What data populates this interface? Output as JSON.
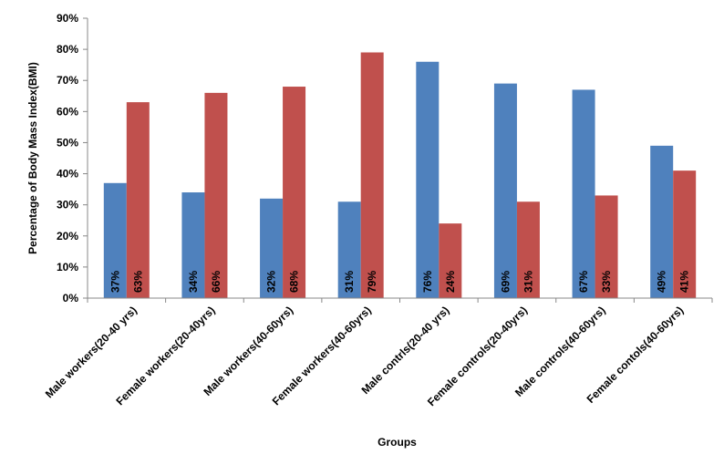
{
  "chart_data": {
    "type": "bar",
    "title": "",
    "xlabel": "Groups",
    "ylabel": "Percentage of Body Mass Index(BMI)",
    "ylim": [
      0,
      90
    ],
    "yticks": [
      "0%",
      "10%",
      "20%",
      "30%",
      "40%",
      "50%",
      "60%",
      "70%",
      "80%",
      "90%"
    ],
    "grid": false,
    "legend": "none",
    "categories": [
      "Male workers(20-40 yrs)",
      "Female workers(20-40yrs)",
      "Male workers(40-60yrs)",
      "Female workers(40-60yrs)",
      "Male contrls(20-40 yrs)",
      "Female controls(20-40yrs)",
      "Male controls(40-60yrs)",
      "Female contols(40-60yrs)"
    ],
    "series": [
      {
        "color": "#4F81BD",
        "values": [
          37,
          34,
          32,
          31,
          76,
          69,
          67,
          49
        ],
        "labels": [
          "37%",
          "34%",
          "32%",
          "31%",
          "76%",
          "69%",
          "67%",
          "49%"
        ]
      },
      {
        "color": "#C0504D",
        "values": [
          63,
          66,
          68,
          79,
          24,
          31,
          33,
          41
        ],
        "labels": [
          "63%",
          "66%",
          "68%",
          "79%",
          "24%",
          "31%",
          "33%",
          "41%"
        ]
      }
    ]
  }
}
